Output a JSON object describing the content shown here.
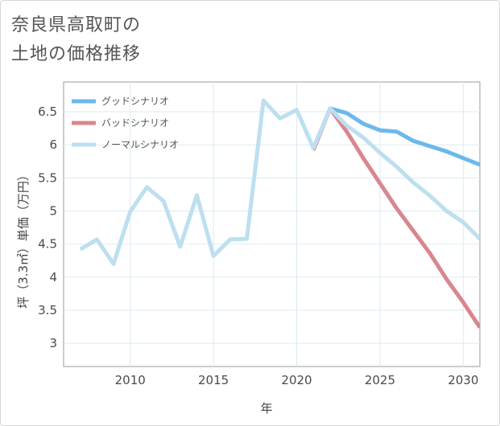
{
  "title_lines": [
    "奈良県高取町の",
    "土地の価格推移"
  ],
  "chart_data": {
    "type": "line",
    "title": "奈良県高取町の土地の価格推移",
    "xlabel": "年",
    "ylabel": "坪（3.3㎡）単価（万円）",
    "xlim": [
      2006,
      2031
    ],
    "ylim": [
      2.65,
      6.95
    ],
    "xticks": [
      2010,
      2015,
      2020,
      2025,
      2030
    ],
    "yticks": [
      3,
      3.5,
      4,
      4.5,
      5,
      5.5,
      6,
      6.5
    ],
    "grid": true,
    "legend_position": "top-left",
    "series": [
      {
        "name": "グッドシナリオ",
        "color": "#6cb8ec",
        "x": [
          2022,
          2023,
          2024,
          2025,
          2026,
          2027,
          2028,
          2029,
          2030,
          2031
        ],
        "values": [
          6.55,
          6.48,
          6.32,
          6.22,
          6.2,
          6.06,
          5.98,
          5.9,
          5.8,
          5.7
        ]
      },
      {
        "name": "バッドシナリオ",
        "color": "#d9868e",
        "x": [
          2021,
          2022,
          2023,
          2024,
          2025,
          2026,
          2027,
          2028,
          2029,
          2030,
          2031
        ],
        "values": [
          5.92,
          6.55,
          6.2,
          5.8,
          5.42,
          5.04,
          4.7,
          4.36,
          3.97,
          3.62,
          3.24
        ]
      },
      {
        "name": "ノーマルシナリオ",
        "color": "#bddff0",
        "x": [
          2007,
          2008,
          2009,
          2010,
          2011,
          2012,
          2013,
          2014,
          2015,
          2016,
          2017,
          2018,
          2019,
          2020,
          2021,
          2022,
          2023,
          2024,
          2025,
          2026,
          2027,
          2028,
          2029,
          2030,
          2031
        ],
        "values": [
          4.42,
          4.57,
          4.2,
          4.99,
          5.36,
          5.15,
          4.46,
          5.24,
          4.32,
          4.57,
          4.58,
          6.67,
          6.4,
          6.53,
          5.95,
          6.55,
          6.29,
          6.11,
          5.88,
          5.67,
          5.43,
          5.23,
          5.0,
          4.83,
          4.58
        ]
      }
    ]
  }
}
